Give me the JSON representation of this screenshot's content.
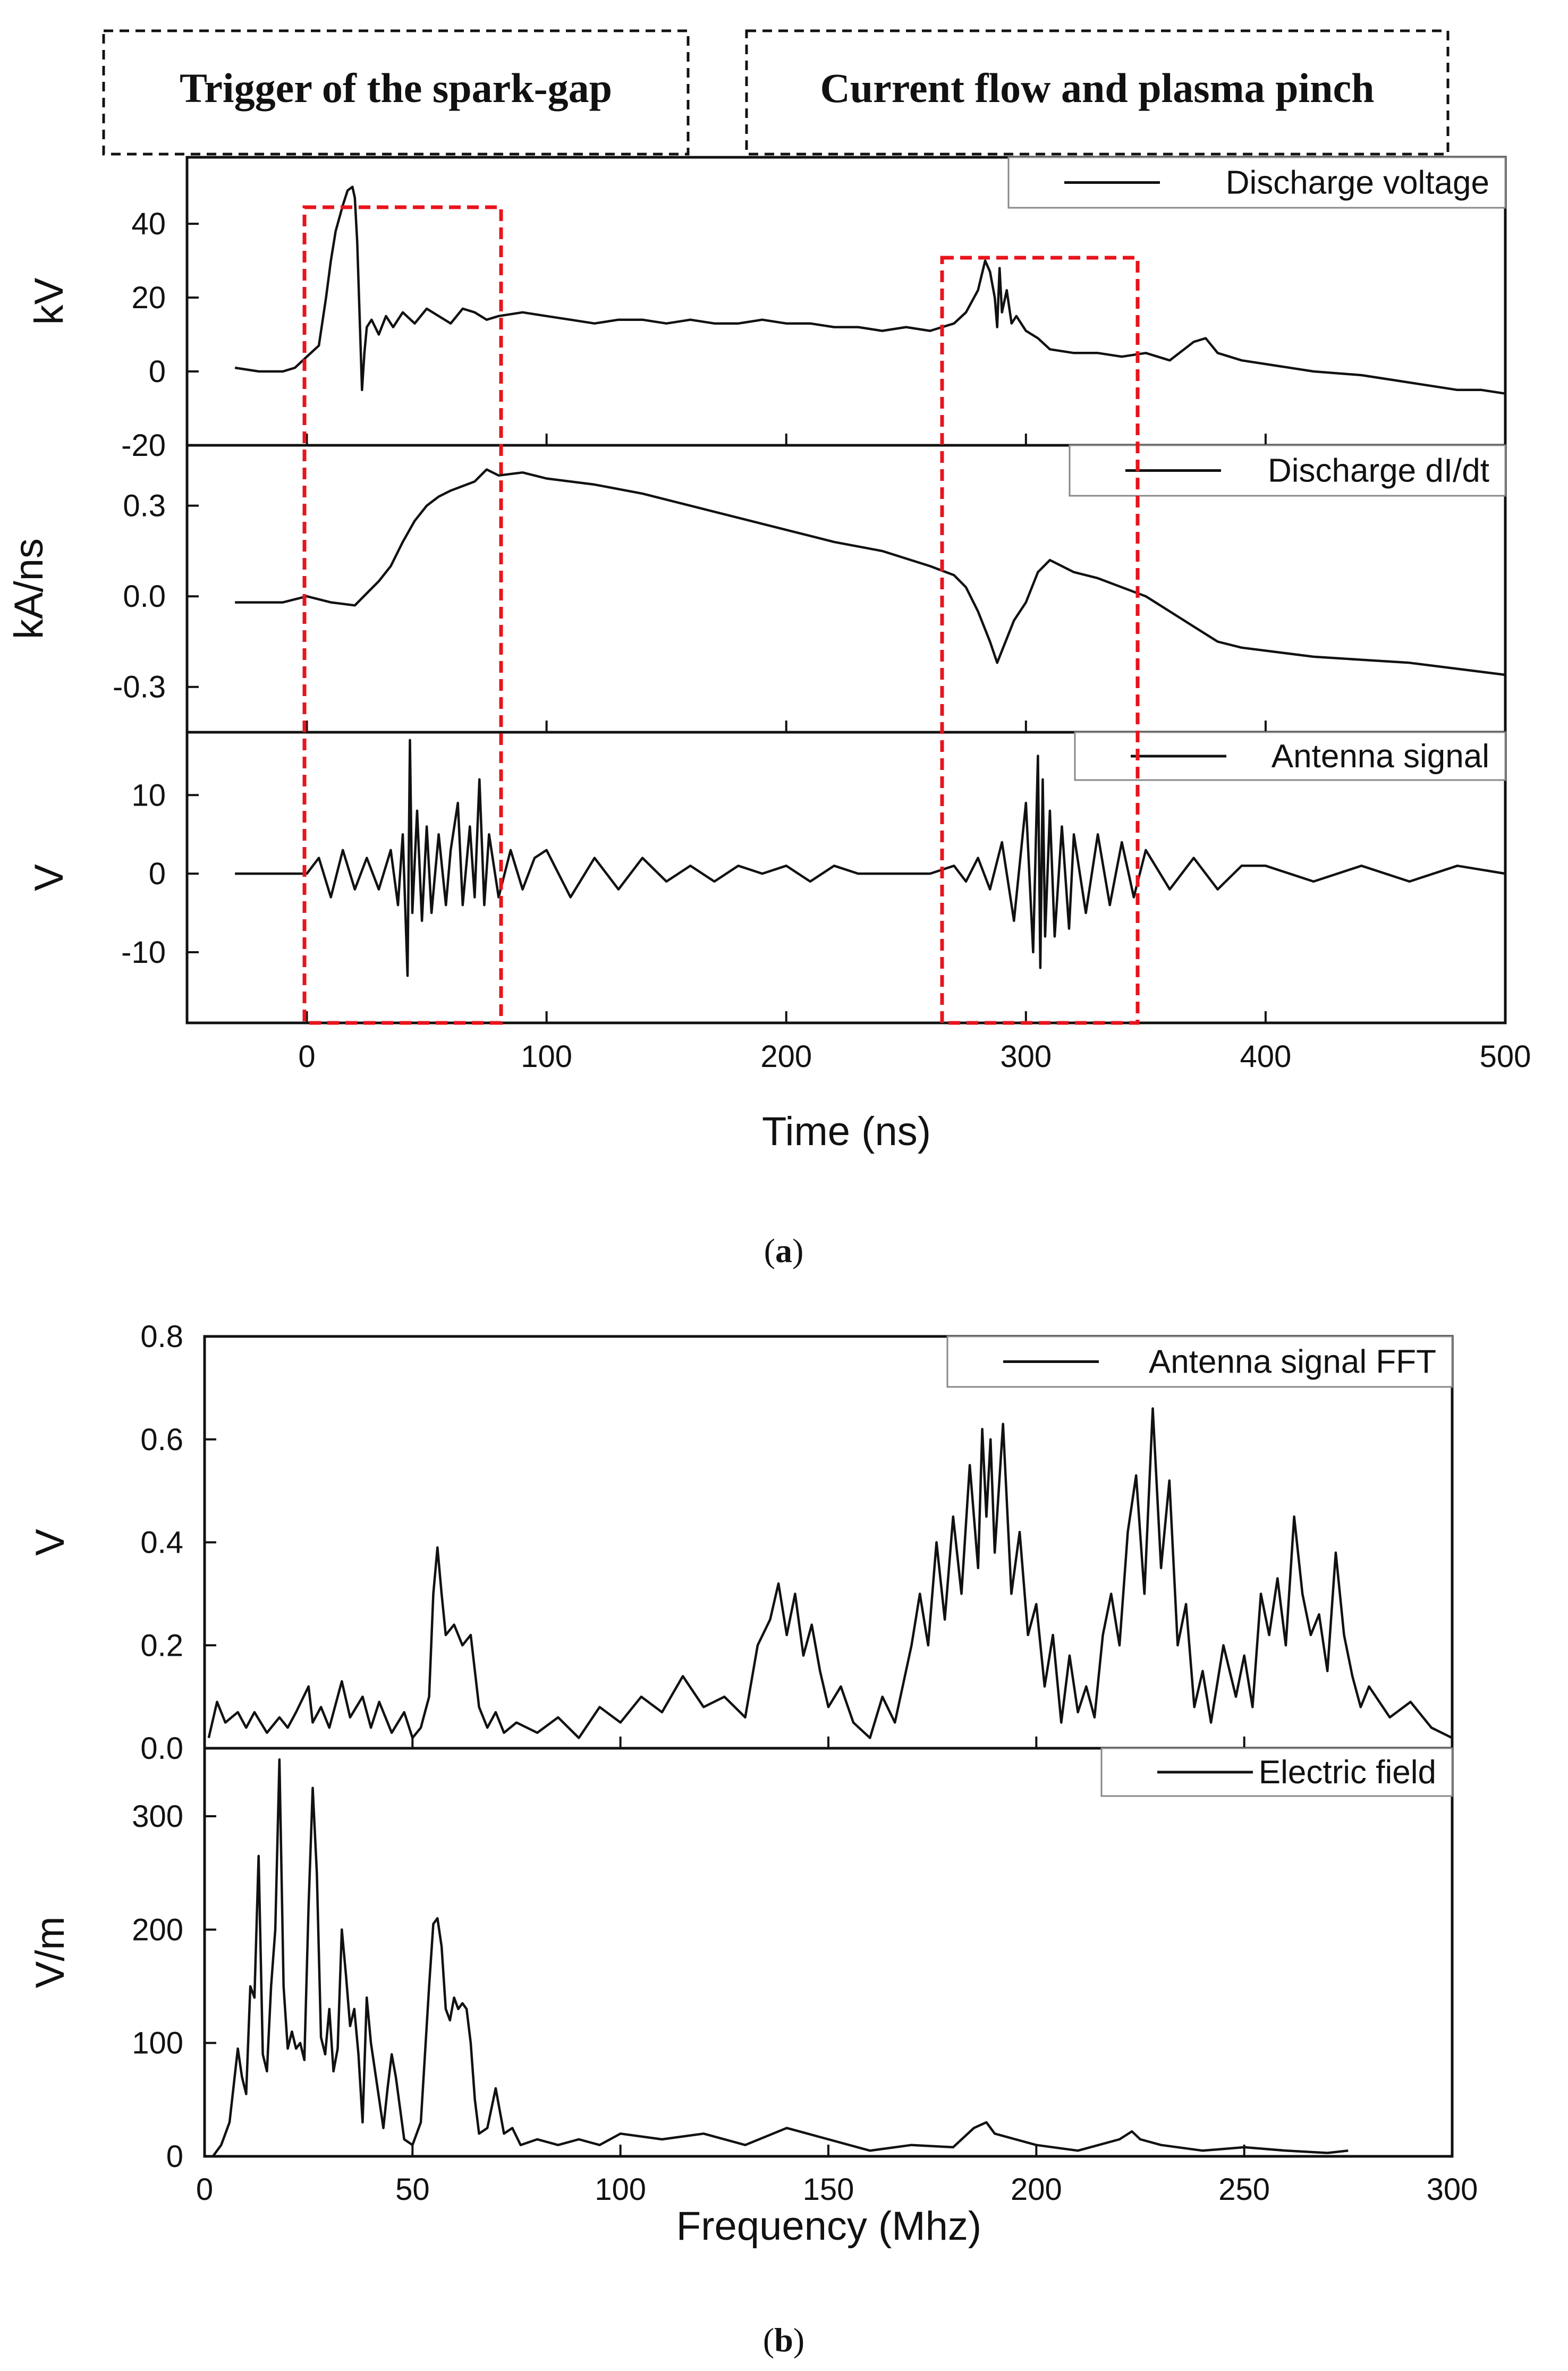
{
  "figure": {
    "panel_a": {
      "caption_letter": "a",
      "caption_open": "(",
      "caption_close": ")",
      "header_boxes": [
        "Trigger of the spark-gap",
        "Current flow and plasma pinch"
      ],
      "xlabel": "Time (ns)"
    },
    "panel_b": {
      "caption_letter": "b",
      "caption_open": "(",
      "caption_close": ")",
      "xlabel": "Frequency (Mhz)"
    }
  },
  "chart_data": [
    {
      "id": "voltage",
      "type": "line",
      "ylabel": "kV",
      "legend": "Discharge voltage",
      "xlim": [
        -50,
        500
      ],
      "ylim": [
        -20,
        58
      ],
      "yticks": [
        -20,
        0,
        20,
        40
      ],
      "x": [
        -30,
        -20,
        -10,
        -5,
        0,
        5,
        8,
        10,
        12,
        15,
        17,
        19,
        20,
        21,
        22,
        23,
        24,
        25,
        27,
        30,
        33,
        36,
        40,
        45,
        50,
        55,
        60,
        65,
        70,
        75,
        80,
        90,
        100,
        110,
        120,
        130,
        140,
        150,
        160,
        170,
        180,
        190,
        200,
        210,
        220,
        230,
        240,
        250,
        260,
        270,
        275,
        280,
        283,
        285,
        287,
        288,
        289,
        290,
        292,
        294,
        296,
        300,
        305,
        310,
        320,
        330,
        340,
        350,
        360,
        370,
        375,
        380,
        390,
        400,
        420,
        440,
        460,
        480,
        490,
        500
      ],
      "values": [
        1,
        0,
        0,
        1,
        4,
        7,
        20,
        30,
        38,
        45,
        49,
        50,
        47,
        35,
        15,
        -5,
        5,
        12,
        14,
        10,
        15,
        12,
        16,
        13,
        17,
        15,
        13,
        17,
        16,
        14,
        15,
        16,
        15,
        14,
        13,
        14,
        14,
        13,
        14,
        13,
        13,
        14,
        13,
        13,
        12,
        12,
        11,
        12,
        11,
        13,
        16,
        22,
        30,
        27,
        20,
        12,
        28,
        16,
        22,
        13,
        15,
        11,
        9,
        6,
        5,
        5,
        4,
        5,
        3,
        8,
        9,
        5,
        3,
        2,
        0,
        -1,
        -3,
        -5,
        -5,
        -6
      ]
    },
    {
      "id": "didt",
      "type": "line",
      "ylabel": "kA/ns",
      "legend": "Discharge dI/dt",
      "xlim": [
        -50,
        500
      ],
      "ylim": [
        -0.45,
        0.5
      ],
      "yticks": [
        -0.3,
        0.0,
        0.3
      ],
      "x": [
        -30,
        -20,
        -10,
        0,
        10,
        20,
        25,
        30,
        35,
        40,
        45,
        50,
        55,
        60,
        70,
        75,
        80,
        90,
        100,
        120,
        140,
        160,
        180,
        200,
        220,
        240,
        260,
        270,
        275,
        280,
        285,
        288,
        290,
        295,
        300,
        305,
        310,
        320,
        330,
        340,
        350,
        360,
        370,
        380,
        390,
        400,
        420,
        440,
        460,
        480,
        500
      ],
      "values": [
        -0.02,
        -0.02,
        -0.02,
        0.0,
        -0.02,
        -0.03,
        0.01,
        0.05,
        0.1,
        0.18,
        0.25,
        0.3,
        0.33,
        0.35,
        0.38,
        0.42,
        0.4,
        0.41,
        0.39,
        0.37,
        0.34,
        0.3,
        0.26,
        0.22,
        0.18,
        0.15,
        0.1,
        0.07,
        0.03,
        -0.05,
        -0.15,
        -0.22,
        -0.18,
        -0.08,
        -0.02,
        0.08,
        0.12,
        0.08,
        0.06,
        0.03,
        0.0,
        -0.05,
        -0.1,
        -0.15,
        -0.17,
        -0.18,
        -0.2,
        -0.21,
        -0.22,
        -0.24,
        -0.26
      ]
    },
    {
      "id": "antenna",
      "type": "line",
      "ylabel": "V",
      "legend": "Antenna signal",
      "xlim": [
        -50,
        500
      ],
      "ylim": [
        -19,
        18
      ],
      "yticks": [
        -10,
        0,
        10
      ],
      "x": [
        -30,
        -20,
        -10,
        0,
        5,
        10,
        15,
        20,
        25,
        30,
        35,
        38,
        40,
        42,
        43,
        44,
        46,
        48,
        50,
        52,
        55,
        58,
        60,
        63,
        65,
        68,
        70,
        72,
        74,
        76,
        80,
        85,
        90,
        95,
        100,
        110,
        120,
        130,
        140,
        150,
        160,
        170,
        180,
        190,
        200,
        210,
        220,
        230,
        240,
        250,
        260,
        270,
        275,
        280,
        285,
        290,
        295,
        300,
        303,
        305,
        306,
        307,
        308,
        310,
        312,
        315,
        318,
        320,
        325,
        330,
        335,
        340,
        345,
        350,
        360,
        370,
        380,
        390,
        400,
        420,
        440,
        460,
        480,
        500
      ],
      "values": [
        0,
        0,
        0,
        0,
        2,
        -3,
        3,
        -2,
        2,
        -2,
        3,
        -4,
        5,
        -13,
        17,
        -5,
        8,
        -6,
        6,
        -5,
        5,
        -4,
        3,
        9,
        -4,
        6,
        -3,
        12,
        -4,
        5,
        -3,
        3,
        -2,
        2,
        3,
        -3,
        2,
        -2,
        2,
        -1,
        1,
        -1,
        1,
        0,
        1,
        -1,
        1,
        0,
        0,
        0,
        0,
        1,
        -1,
        2,
        -2,
        4,
        -6,
        9,
        -10,
        15,
        -12,
        12,
        -8,
        8,
        -8,
        6,
        -7,
        5,
        -5,
        5,
        -4,
        4,
        -3,
        3,
        -2,
        2,
        -2,
        1,
        1,
        -1,
        1,
        -1,
        1,
        0
      ]
    },
    {
      "id": "fft",
      "type": "line",
      "ylabel": "V",
      "legend": "Antenna signal FFT",
      "xlim": [
        0,
        300
      ],
      "ylim": [
        0,
        0.8
      ],
      "yticks": [
        0.0,
        0.2,
        0.4,
        0.6,
        0.8
      ],
      "x": [
        1,
        3,
        5,
        8,
        10,
        12,
        15,
        18,
        20,
        22,
        25,
        26,
        28,
        30,
        33,
        35,
        38,
        40,
        42,
        45,
        48,
        50,
        52,
        54,
        55,
        56,
        57,
        58,
        60,
        62,
        64,
        66,
        68,
        70,
        72,
        75,
        80,
        85,
        90,
        95,
        100,
        105,
        110,
        115,
        120,
        125,
        130,
        133,
        136,
        138,
        140,
        142,
        144,
        146,
        148,
        150,
        153,
        156,
        160,
        163,
        166,
        170,
        172,
        174,
        176,
        178,
        180,
        182,
        184,
        186,
        187,
        188,
        189,
        190,
        192,
        194,
        196,
        198,
        200,
        202,
        204,
        206,
        208,
        210,
        212,
        214,
        216,
        218,
        220,
        222,
        224,
        226,
        228,
        230,
        232,
        234,
        236,
        238,
        240,
        242,
        245,
        248,
        250,
        252,
        254,
        256,
        258,
        260,
        262,
        264,
        266,
        268,
        270,
        272,
        274,
        276,
        278,
        280,
        285,
        290,
        295,
        300
      ],
      "values": [
        0.02,
        0.09,
        0.05,
        0.07,
        0.04,
        0.07,
        0.03,
        0.06,
        0.04,
        0.07,
        0.12,
        0.05,
        0.08,
        0.04,
        0.13,
        0.06,
        0.1,
        0.04,
        0.09,
        0.03,
        0.07,
        0.02,
        0.04,
        0.1,
        0.3,
        0.39,
        0.3,
        0.22,
        0.24,
        0.2,
        0.22,
        0.08,
        0.04,
        0.07,
        0.03,
        0.05,
        0.03,
        0.06,
        0.02,
        0.08,
        0.05,
        0.1,
        0.07,
        0.14,
        0.08,
        0.1,
        0.06,
        0.2,
        0.25,
        0.32,
        0.22,
        0.3,
        0.18,
        0.24,
        0.15,
        0.08,
        0.12,
        0.05,
        0.02,
        0.1,
        0.05,
        0.2,
        0.3,
        0.2,
        0.4,
        0.25,
        0.45,
        0.3,
        0.55,
        0.35,
        0.62,
        0.45,
        0.6,
        0.38,
        0.63,
        0.3,
        0.42,
        0.22,
        0.28,
        0.12,
        0.22,
        0.05,
        0.18,
        0.07,
        0.12,
        0.06,
        0.22,
        0.3,
        0.2,
        0.42,
        0.53,
        0.3,
        0.66,
        0.35,
        0.52,
        0.2,
        0.28,
        0.08,
        0.15,
        0.05,
        0.2,
        0.1,
        0.18,
        0.08,
        0.3,
        0.22,
        0.33,
        0.2,
        0.45,
        0.3,
        0.22,
        0.26,
        0.15,
        0.38,
        0.22,
        0.14,
        0.08,
        0.12,
        0.06,
        0.09,
        0.04,
        0.02
      ]
    },
    {
      "id": "efield",
      "type": "line",
      "ylabel": "V/m",
      "legend": "Electric field",
      "xlim": [
        0,
        300
      ],
      "ylim": [
        0,
        360
      ],
      "yticks": [
        0,
        100,
        200,
        300
      ],
      "x": [
        2,
        4,
        6,
        8,
        9,
        10,
        11,
        12,
        13,
        14,
        15,
        16,
        17,
        18,
        19,
        20,
        21,
        22,
        23,
        24,
        25,
        26,
        27,
        28,
        29,
        30,
        31,
        32,
        33,
        34,
        35,
        36,
        37,
        38,
        39,
        40,
        41,
        42,
        43,
        44,
        45,
        46,
        48,
        50,
        52,
        54,
        55,
        56,
        57,
        58,
        59,
        60,
        61,
        62,
        63,
        64,
        65,
        66,
        68,
        70,
        72,
        74,
        76,
        80,
        85,
        90,
        95,
        100,
        110,
        120,
        130,
        140,
        145,
        150,
        160,
        170,
        180,
        185,
        188,
        190,
        195,
        200,
        210,
        220,
        223,
        225,
        230,
        240,
        250,
        260,
        270,
        275
      ],
      "values": [
        0,
        10,
        30,
        95,
        70,
        55,
        150,
        140,
        265,
        90,
        75,
        150,
        200,
        350,
        150,
        95,
        110,
        95,
        100,
        85,
        220,
        325,
        250,
        105,
        90,
        130,
        75,
        95,
        200,
        160,
        115,
        130,
        90,
        30,
        140,
        100,
        75,
        50,
        25,
        60,
        90,
        70,
        15,
        10,
        30,
        150,
        205,
        210,
        185,
        130,
        120,
        140,
        130,
        135,
        130,
        100,
        50,
        20,
        25,
        60,
        20,
        25,
        10,
        15,
        10,
        15,
        10,
        20,
        15,
        20,
        10,
        25,
        20,
        15,
        5,
        10,
        8,
        25,
        30,
        20,
        15,
        10,
        5,
        15,
        22,
        15,
        10,
        5,
        8,
        5,
        3,
        5
      ]
    }
  ]
}
